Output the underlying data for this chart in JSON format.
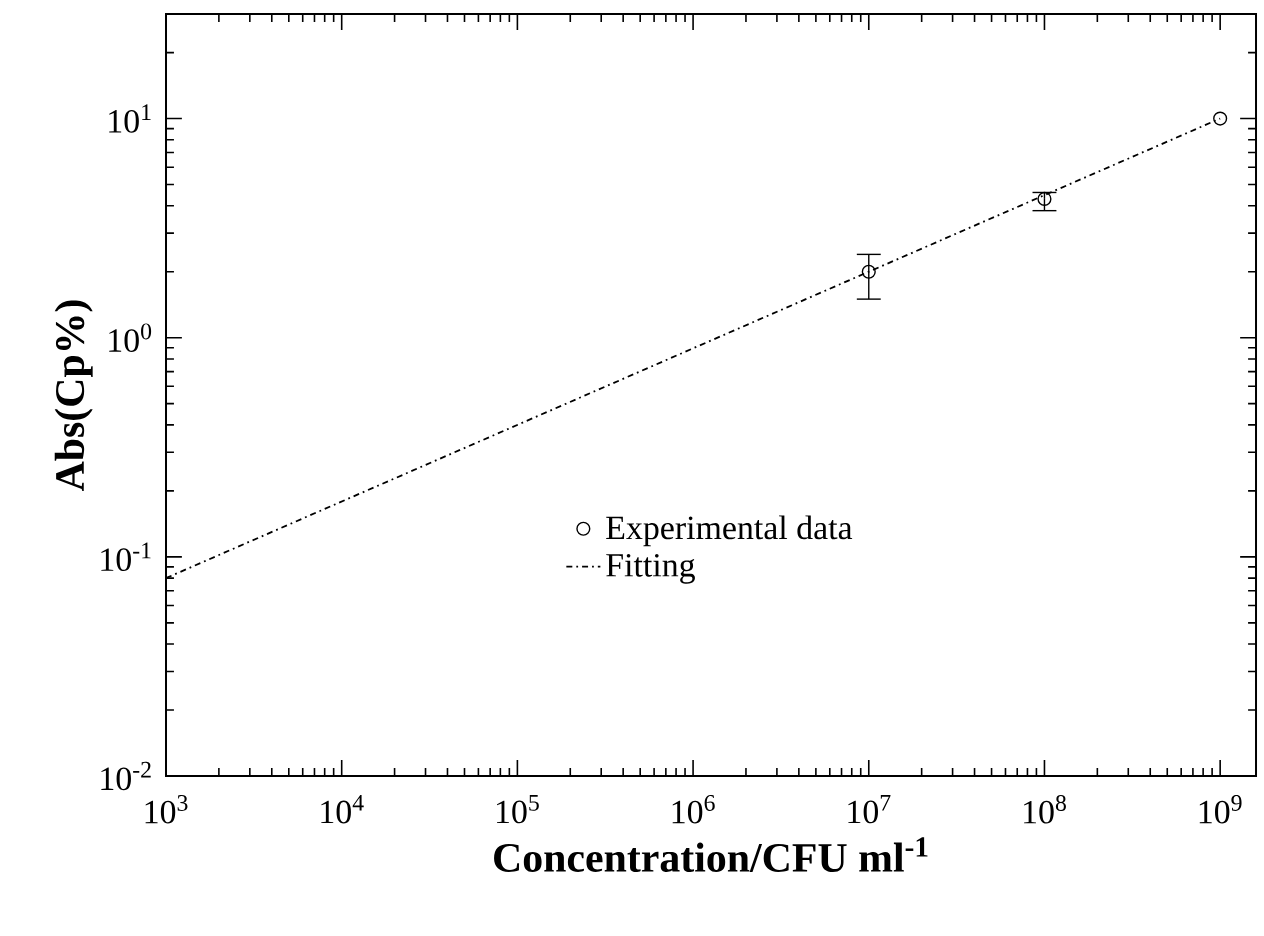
{
  "chart_data": {
    "type": "scatter",
    "xlabel": "Concentration/CFU ml$^{-1}$",
    "ylabel": "Abs(Cp%)",
    "log": "xy",
    "xlim": [
      1000,
      1600000000
    ],
    "ylim": [
      0.01,
      30
    ],
    "xticks": [
      {
        "value": 1000,
        "label": "10$^{3}$"
      },
      {
        "value": 10000,
        "label": "10$^{4}$"
      },
      {
        "value": 100000,
        "label": "10$^{5}$"
      },
      {
        "value": 1000000,
        "label": "10$^{6}$"
      },
      {
        "value": 10000000,
        "label": "10$^{7}$"
      },
      {
        "value": 100000000,
        "label": "10$^{8}$"
      },
      {
        "value": 1000000000,
        "label": "10$^{9}$"
      }
    ],
    "yticks": [
      {
        "value": 0.01,
        "label": "10$^{-2}$"
      },
      {
        "value": 0.1,
        "label": "10$^{-1}$"
      },
      {
        "value": 1,
        "label": "10$^{0}$"
      },
      {
        "value": 10,
        "label": "10$^{1}$"
      }
    ],
    "legend": "center",
    "grid": false,
    "series": [
      {
        "name": "Experimental data",
        "color": "#000000",
        "marker": "circle",
        "x": [
          10000000,
          100000000,
          1000000000
        ],
        "values": [
          2.0,
          4.3,
          10
        ],
        "errors": [
          [
            1.5,
            2.4
          ],
          [
            3.8,
            4.6
          ],
          null
        ]
      },
      {
        "name": "Fitting",
        "type": "line",
        "color": "#000000",
        "marker": "none",
        "line_style": "dashdot",
        "x": [
          1000,
          1000000000
        ],
        "values": [
          0.08,
          10
        ]
      }
    ]
  }
}
